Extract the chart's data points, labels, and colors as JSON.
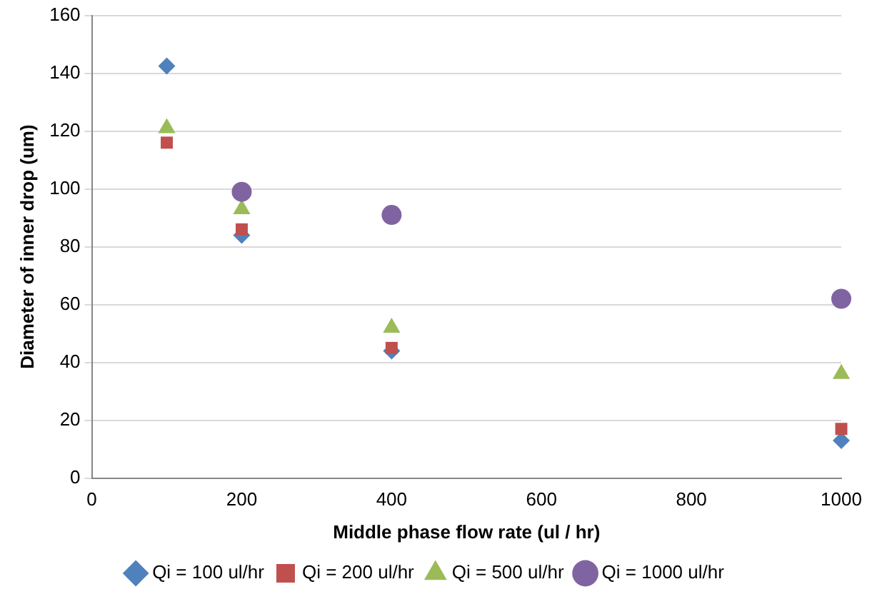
{
  "chart_data": {
    "type": "scatter",
    "xlabel": "Middle phase flow rate (ul / hr)",
    "ylabel": "Diameter of inner drop (um)",
    "x": [
      100,
      200,
      400,
      1000
    ],
    "series": [
      {
        "name": "Qi = 100 ul/hr",
        "color": "#4f81bd",
        "marker": "diamond",
        "values": [
          142.5,
          84,
          44,
          13
        ]
      },
      {
        "name": "Qi = 200 ul/hr",
        "color": "#c0504d",
        "marker": "square",
        "values": [
          116,
          86,
          45,
          17
        ]
      },
      {
        "name": "Qi = 500 ul/hr",
        "color": "#9bbb59",
        "marker": "triangle",
        "values": [
          121,
          93,
          52,
          36
        ]
      },
      {
        "name": "Qi = 1000 ul/hr",
        "color": "#8064a2",
        "marker": "circle",
        "values": [
          null,
          99,
          91,
          62
        ]
      }
    ],
    "xlim": [
      0,
      1000
    ],
    "xticks": [
      0,
      200,
      400,
      600,
      800,
      1000
    ],
    "ylim": [
      0,
      160
    ],
    "yticks": [
      0,
      20,
      40,
      60,
      80,
      100,
      120,
      140,
      160
    ],
    "grid": "y",
    "legend": "bottom"
  }
}
